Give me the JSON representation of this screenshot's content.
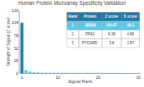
{
  "chart_data": {
    "type": "bar",
    "title": "Human Protein Microarray Specificity Validation",
    "xlabel": "Signal Rank",
    "ylabel": "Strength of Signal (Z score)",
    "x": [
      1,
      2,
      3,
      4,
      5,
      6,
      7,
      8,
      9,
      10,
      11,
      12,
      13,
      14,
      15,
      16,
      17,
      18,
      19,
      20,
      21,
      22,
      23,
      24,
      25,
      26,
      27,
      28,
      29,
      30
    ],
    "values": [
      104.67,
      6.38,
      3.8,
      2.5,
      2.0,
      1.7,
      1.5,
      1.3,
      1.2,
      1.1,
      1.0,
      0.95,
      0.9,
      0.85,
      0.8,
      0.78,
      0.75,
      0.72,
      0.7,
      0.68,
      0.65,
      0.63,
      0.61,
      0.59,
      0.57,
      0.55,
      0.53,
      0.51,
      0.49,
      0.47
    ],
    "colors": [
      "#1a7aaa",
      "#5bc8e8",
      "#5bc8e8",
      "#5bc8e8",
      "#5bc8e8",
      "#5bc8e8",
      "#5bc8e8",
      "#5bc8e8",
      "#5bc8e8",
      "#5bc8e8",
      "#5bc8e8",
      "#5bc8e8",
      "#5bc8e8",
      "#5bc8e8",
      "#5bc8e8",
      "#5bc8e8",
      "#5bc8e8",
      "#5bc8e8",
      "#5bc8e8",
      "#5bc8e8",
      "#5bc8e8",
      "#5bc8e8",
      "#5bc8e8",
      "#5bc8e8",
      "#5bc8e8",
      "#5bc8e8",
      "#5bc8e8",
      "#5bc8e8",
      "#5bc8e8",
      "#5bc8e8"
    ],
    "xlim": [
      0.4,
      30.6
    ],
    "xticks": [
      1,
      10,
      20,
      30
    ],
    "ylim": [
      0,
      130
    ],
    "yticks": [
      0,
      26,
      52,
      78,
      104,
      130
    ],
    "grid": false,
    "table": {
      "headers": [
        "Rank",
        "Protein",
        "Z score",
        "S score"
      ],
      "rows": [
        [
          "1",
          "MSH6",
          "104.67",
          "98.3"
        ],
        [
          "2",
          "PPA2",
          "6.38",
          "4.68"
        ],
        [
          "3",
          "PYCARD",
          "3.8",
          "1.57"
        ]
      ]
    }
  }
}
